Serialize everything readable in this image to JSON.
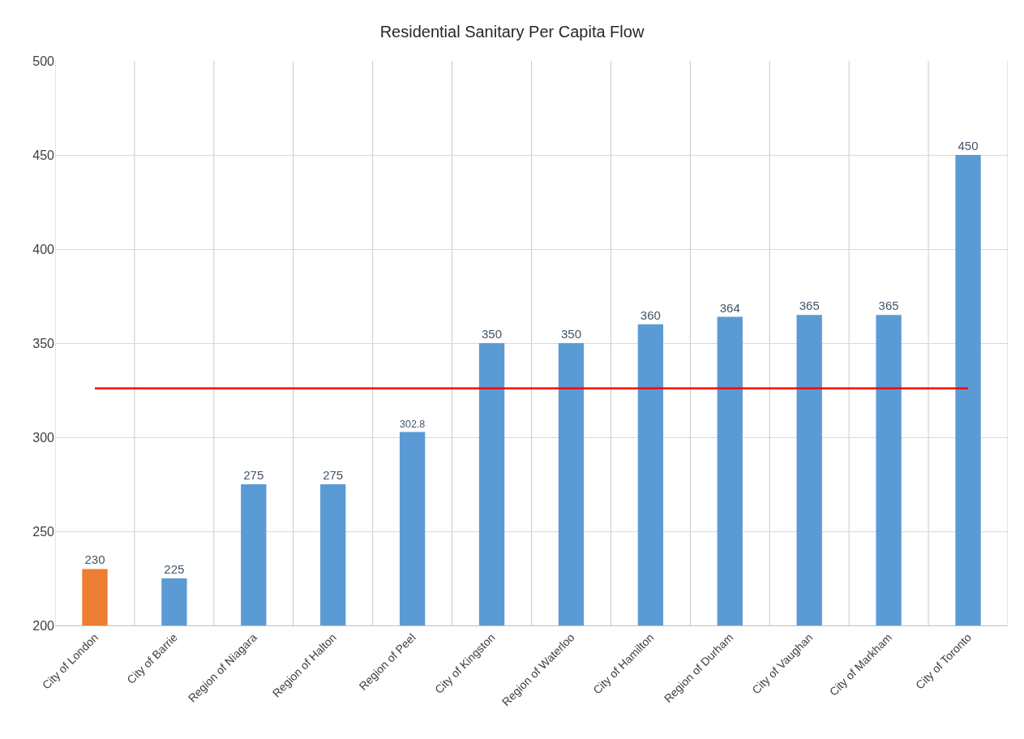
{
  "chart_data": {
    "type": "bar",
    "title": "Residential Sanitary Per Capita Flow",
    "categories": [
      "City of London",
      "City of Barrie",
      "Region of Niagara",
      "Region of Halton",
      "Region of Peel",
      "City of Kingston",
      "Region of Waterloo",
      "City of Hamilton",
      "Region of Durham",
      "City of Vaughan",
      "City of Markham",
      "City of Toronto"
    ],
    "values": [
      230,
      225,
      275,
      275,
      302.8,
      350,
      350,
      360,
      364,
      365,
      365,
      450
    ],
    "colors": [
      "#ed7d31",
      "#5b9bd5",
      "#5b9bd5",
      "#5b9bd5",
      "#5b9bd5",
      "#5b9bd5",
      "#5b9bd5",
      "#5b9bd5",
      "#5b9bd5",
      "#5b9bd5",
      "#5b9bd5",
      "#5b9bd5"
    ],
    "ylim": [
      200,
      500
    ],
    "yticks": [
      200,
      250,
      300,
      350,
      400,
      450,
      500
    ],
    "grid": true,
    "data_labels": true,
    "ref_lines": [
      {
        "axis": "y",
        "value": 326,
        "color": "#ff0000"
      }
    ]
  }
}
